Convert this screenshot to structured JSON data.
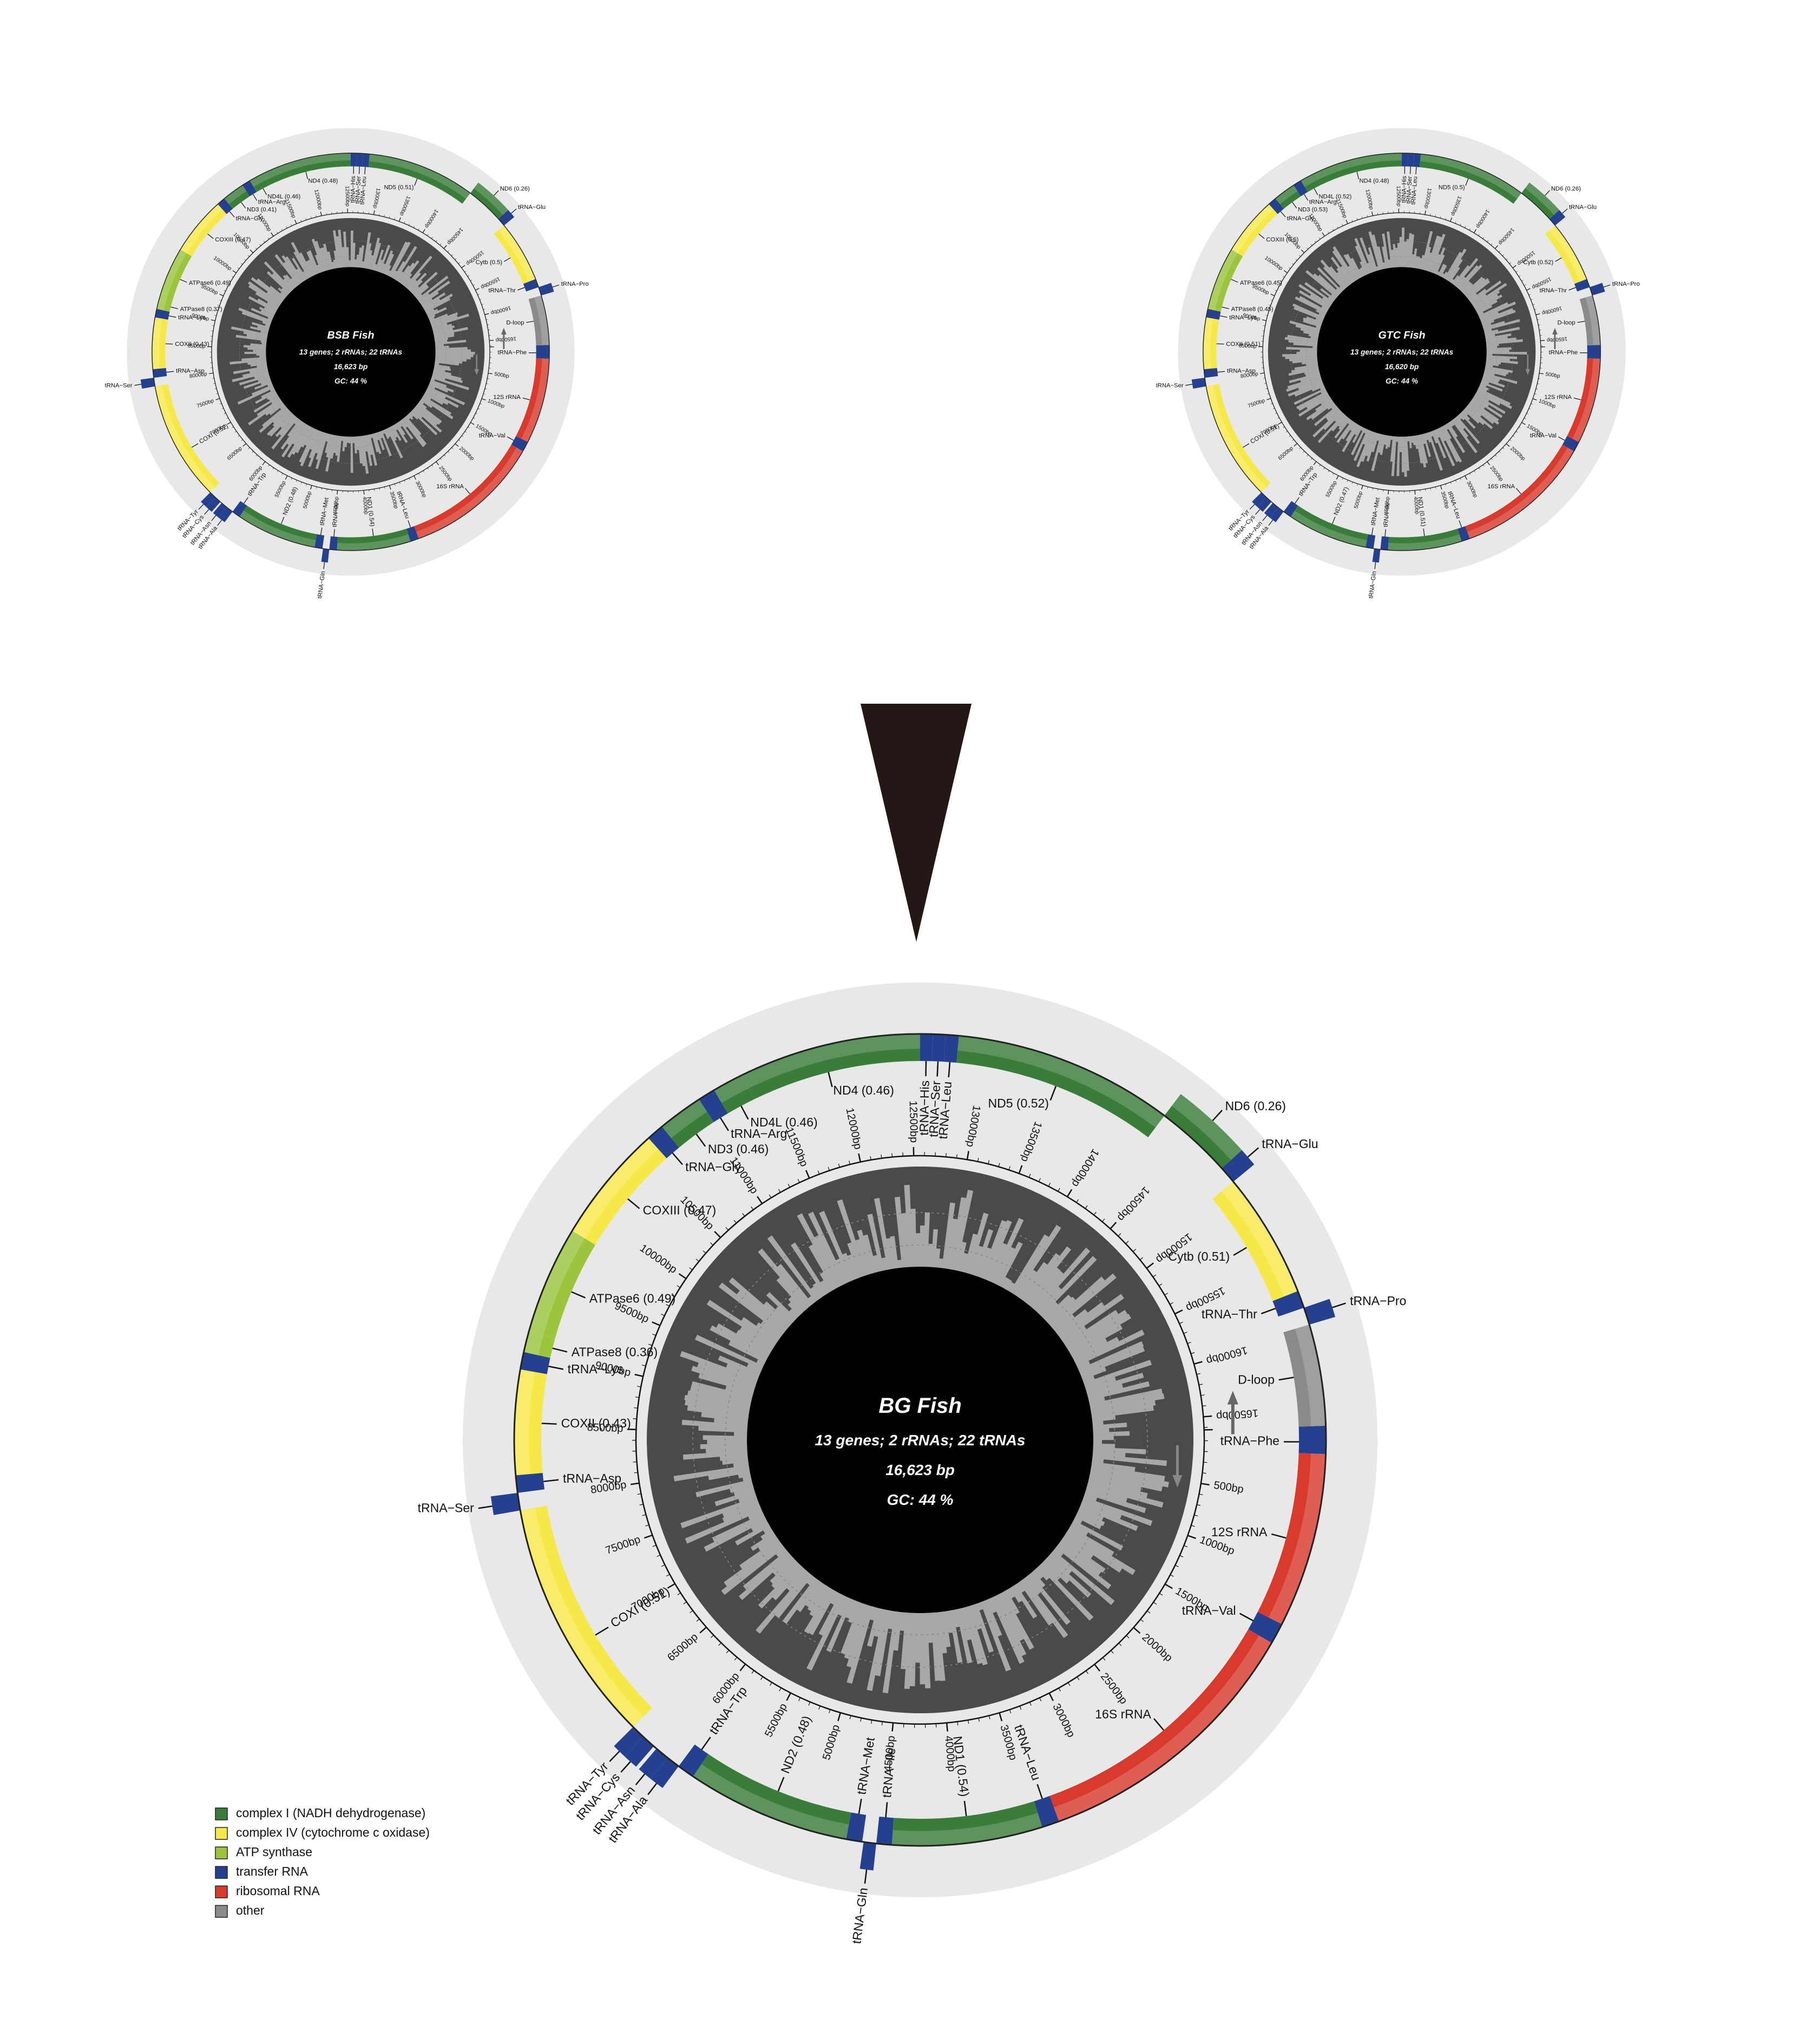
{
  "colors": {
    "complex_I": "#3a7d3a",
    "complex_IV": "#f7e84a",
    "atp": "#9bc53d",
    "trna": "#25408f",
    "rrna": "#d83a2e",
    "other": "#8a8a8a",
    "ring_bg": "#e8e8e8",
    "gc_dark": "#4a4a4a",
    "gc_light": "#a8a8a8",
    "center": "#000000"
  },
  "maps": [
    {
      "id": "bsb",
      "title": "BSB Fish",
      "line1": "13 genes; 2 rRNAs; 22 tRNAs",
      "line2": "16,623 bp",
      "line3": "GC: 44 %",
      "length": 16623,
      "seed": 7,
      "labels": {
        "ND1": "ND1 (0.54)",
        "ND2": "ND2 (0.48)",
        "COXI": "COXI (0.52)",
        "COXII": "COXII (0.43)",
        "ATPase8": "ATPase8 (0.37)",
        "ATPase6": "ATPase6 (0.49)",
        "COXIII": "COXIII (0.47)",
        "ND3": "ND3 (0.41)",
        "ND4L": "ND4L (0.46)",
        "ND4": "ND4 (0.48)",
        "ND5": "ND5 (0.51)",
        "ND6": "ND6 (0.26)",
        "Cytb": "Cytb (0.5)"
      }
    },
    {
      "id": "gtc",
      "title": "GTC Fish",
      "line1": "13 genes; 2 rRNAs; 22 tRNAs",
      "line2": "16,620 bp",
      "line3": "GC: 44 %",
      "length": 16620,
      "seed": 19,
      "labels": {
        "ND1": "ND1 (0.51)",
        "ND2": "ND2 (0.47)",
        "COXI": "COXI (0.51)",
        "COXII": "COXII (0.51)",
        "ATPase8": "ATPase8 (0.45)",
        "ATPase6": "ATPase6 (0.45)",
        "COXIII": "COXIII (0.5)",
        "ND3": "ND3 (0.53)",
        "ND4L": "ND4L (0.52)",
        "ND4": "ND4 (0.48)",
        "ND5": "ND5 (0.5)",
        "ND6": "ND6 (0.26)",
        "Cytb": "Cytb (0.52)"
      }
    },
    {
      "id": "bg",
      "title": "BG Fish",
      "line1": "13 genes; 2 rRNAs; 22 tRNAs",
      "line2": "16,623 bp",
      "line3": "GC: 44 %",
      "length": 16623,
      "seed": 31,
      "labels": {
        "ND1": "ND1 (0.54)",
        "ND2": "ND2 (0.48)",
        "COXI": "COXI (0.51)",
        "COXII": "COXII (0.43)",
        "ATPase8": "ATPase8 (0.36)",
        "ATPase6": "ATPase6 (0.49)",
        "COXIII": "COXIII (0.47)",
        "ND3": "ND3 (0.46)",
        "ND4L": "ND4L (0.46)",
        "ND4": "ND4 (0.46)",
        "ND5": "ND5 (0.52)",
        "ND6": "ND6 (0.26)",
        "Cytb": "Cytb (0.51)"
      }
    }
  ],
  "trna_labels": {
    "Phe": "tRNA−Phe",
    "Val": "tRNA−Val",
    "Leu2": "tRNA−Leu",
    "Ile": "tRNA−Ile",
    "Gln": "tRNA−Gln",
    "Met": "tRNA−Met",
    "Trp": "tRNA−Trp",
    "Ala": "tRNA−Ala",
    "Asn": "tRNA−Asn",
    "Cys": "tRNA−Cys",
    "Tyr": "tRNA−Tyr",
    "Ser2": "tRNA−Ser",
    "Asp": "tRNA−Asp",
    "Lys": "tRNA−Lys",
    "Gly": "tRNA−Gly",
    "Arg": "tRNA−Arg",
    "His": "tRNA−His",
    "Ser1": "tRNA−Ser",
    "Leu1": "tRNA−Leu",
    "Glu": "tRNA−Glu",
    "Thr": "tRNA−Thr",
    "Pro": "tRNA−Pro"
  },
  "other_labels": {
    "rrna12": "12S rRNA",
    "rrna16": "16S rRNA",
    "dloop": "D-loop"
  },
  "legend": [
    {
      "label": "complex I (NADH dehydrogenase)",
      "color": "#3a7d3a"
    },
    {
      "label": "complex IV (cytochrome c oxidase)",
      "color": "#f7e84a"
    },
    {
      "label": "ATP synthase",
      "color": "#9bc53d"
    },
    {
      "label": "transfer RNA",
      "color": "#25408f"
    },
    {
      "label": "ribosomal RNA",
      "color": "#d83a2e"
    },
    {
      "label": "other",
      "color": "#8a8a8a"
    }
  ]
}
